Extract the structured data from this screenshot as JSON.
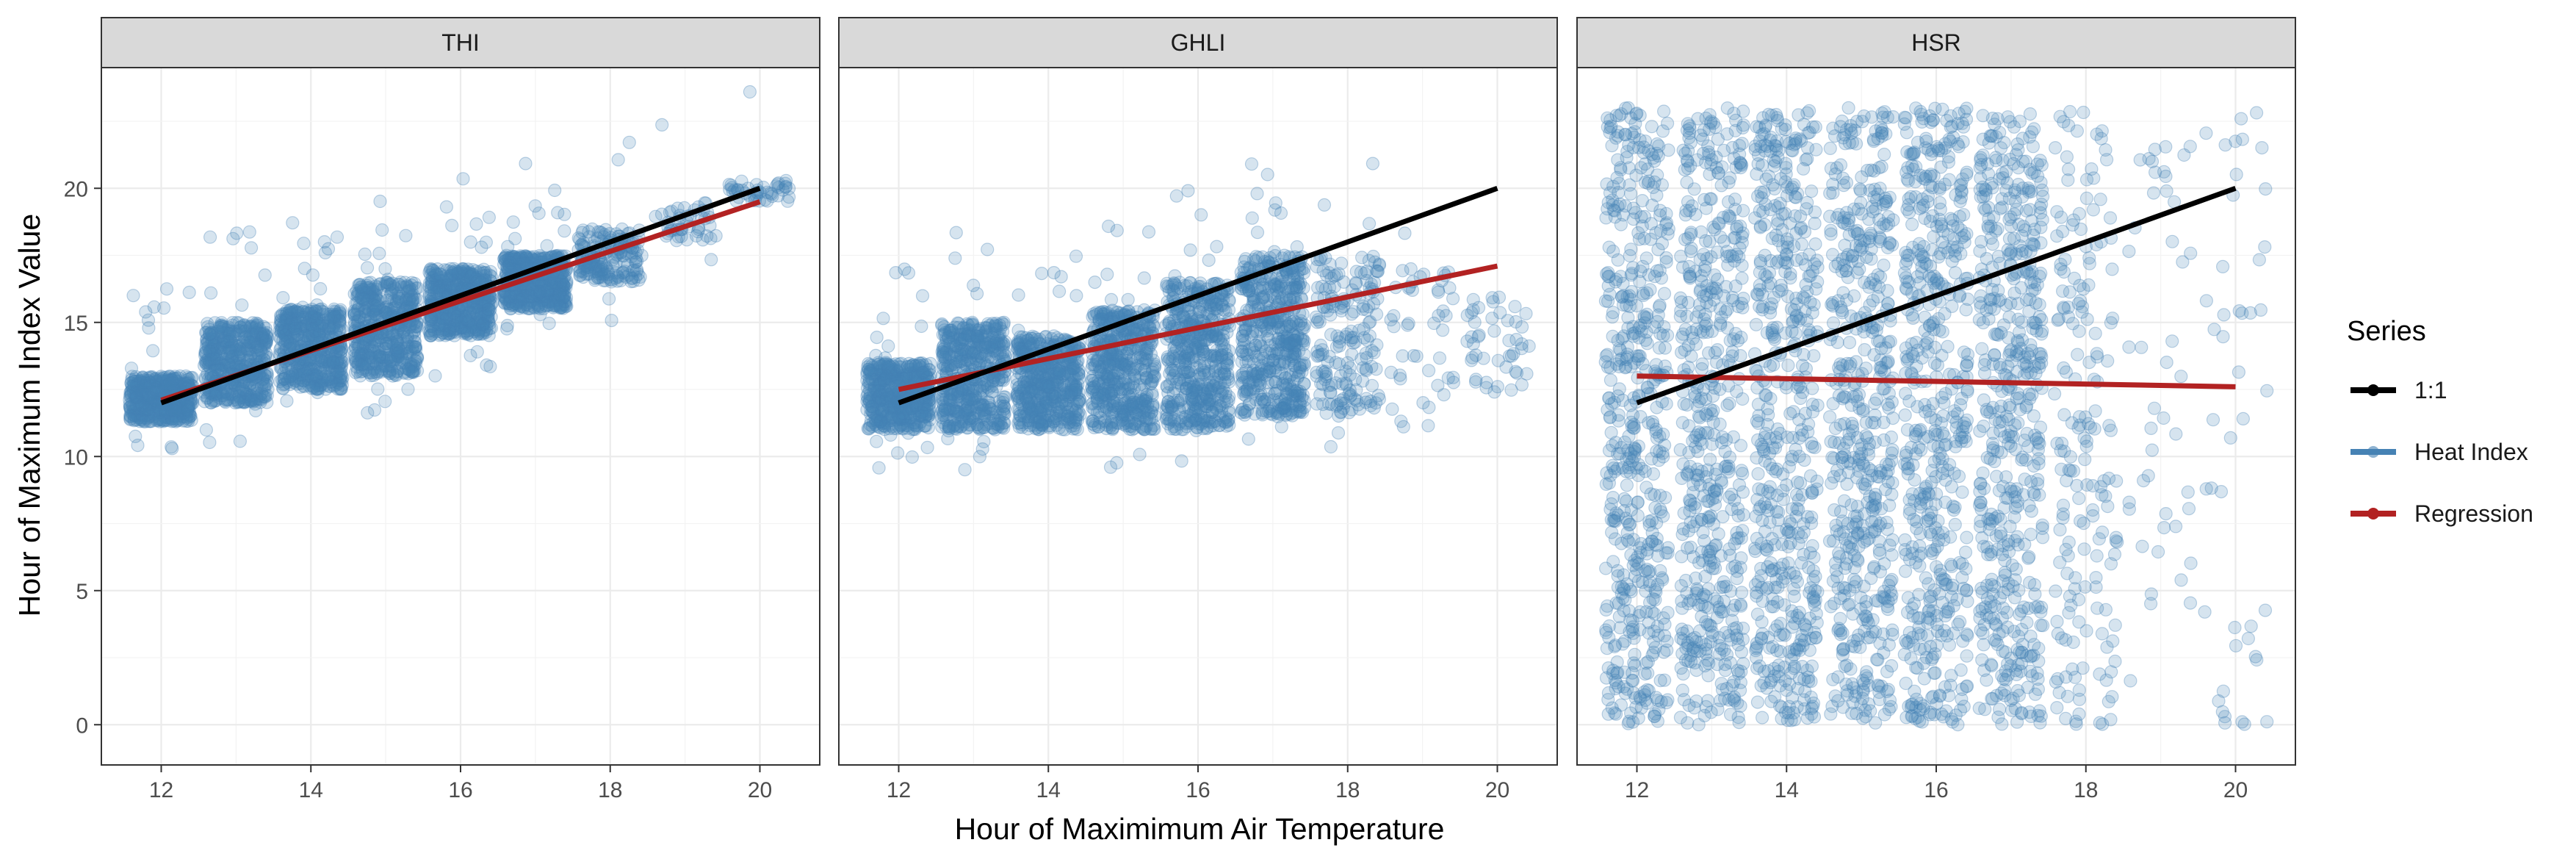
{
  "chart_data": {
    "type": "scatter",
    "facets": [
      "THI",
      "GHLI",
      "HSR"
    ],
    "xlabel": "Hour of Maximimum Air Temperature",
    "ylabel": "Hour of Maximum Index Value",
    "x_ticks": [
      12,
      14,
      16,
      18,
      20
    ],
    "y_ticks": [
      0,
      5,
      10,
      15,
      20
    ],
    "xlim": [
      11.2,
      20.8
    ],
    "ylim": [
      -1.5,
      24.5
    ],
    "legend": {
      "title": "Series",
      "placement": "right",
      "entries": [
        {
          "name": "1:1",
          "color": "#000000"
        },
        {
          "name": "Heat Index",
          "color": "#4682B4"
        },
        {
          "name": "Regression",
          "color": "#B22222"
        }
      ]
    },
    "one_to_one": {
      "x": [
        12,
        20
      ],
      "y": [
        12,
        20
      ]
    },
    "regression": {
      "THI": {
        "x": [
          12,
          20
        ],
        "y": [
          12.1,
          19.5
        ]
      },
      "GHLI": {
        "x": [
          12,
          20
        ],
        "y": [
          12.5,
          17.1
        ]
      },
      "HSR": {
        "x": [
          12,
          20
        ],
        "y": [
          13.0,
          12.6
        ]
      }
    },
    "scatter_summary": {
      "THI": [
        {
          "hour": 12,
          "main_range": [
            11.3,
            13.0
          ],
          "count": "high"
        },
        {
          "hour": 13,
          "main_range": [
            12.0,
            15.0
          ],
          "count": "high"
        },
        {
          "hour": 14,
          "main_range": [
            12.5,
            15.5
          ],
          "count": "high"
        },
        {
          "hour": 15,
          "main_range": [
            13.0,
            16.5
          ],
          "count": "high"
        },
        {
          "hour": 16,
          "main_range": [
            14.5,
            17.0
          ],
          "count": "high"
        },
        {
          "hour": 17,
          "main_range": [
            15.5,
            17.5
          ],
          "count": "high"
        },
        {
          "hour": 18,
          "main_range": [
            16.5,
            18.5
          ],
          "count": "medium"
        },
        {
          "hour": 19,
          "main_range": [
            18.0,
            19.5
          ],
          "count": "low"
        },
        {
          "hour": 20,
          "main_range": [
            19.5,
            20.3
          ],
          "count": "low"
        }
      ],
      "GHLI": [
        {
          "hour": 12,
          "main_range": [
            11.0,
            13.5
          ],
          "count": "high"
        },
        {
          "hour": 13,
          "main_range": [
            11.0,
            15.0
          ],
          "count": "high"
        },
        {
          "hour": 14,
          "main_range": [
            11.0,
            14.5
          ],
          "count": "high"
        },
        {
          "hour": 15,
          "main_range": [
            11.0,
            15.5
          ],
          "count": "high"
        },
        {
          "hour": 16,
          "main_range": [
            11.0,
            16.5
          ],
          "count": "high"
        },
        {
          "hour": 17,
          "main_range": [
            11.5,
            17.5
          ],
          "count": "high"
        },
        {
          "hour": 18,
          "main_range": [
            11.5,
            17.5
          ],
          "count": "medium"
        },
        {
          "hour": 19,
          "main_range": [
            11.0,
            17.0
          ],
          "count": "low"
        },
        {
          "hour": 20,
          "main_range": [
            12.0,
            16.0
          ],
          "count": "low"
        }
      ],
      "HSR": [
        {
          "hour": 12,
          "main_range": [
            0,
            23
          ],
          "count": "high"
        },
        {
          "hour": 13,
          "main_range": [
            0,
            23
          ],
          "count": "high"
        },
        {
          "hour": 14,
          "main_range": [
            0,
            23
          ],
          "count": "high"
        },
        {
          "hour": 15,
          "main_range": [
            0,
            23
          ],
          "count": "high"
        },
        {
          "hour": 16,
          "main_range": [
            0,
            23
          ],
          "count": "high"
        },
        {
          "hour": 17,
          "main_range": [
            0,
            23
          ],
          "count": "high"
        },
        {
          "hour": 18,
          "main_range": [
            0,
            23
          ],
          "count": "medium"
        },
        {
          "hour": 19,
          "main_range": [
            0,
            23
          ],
          "count": "low"
        },
        {
          "hour": 20,
          "main_range": [
            0,
            23
          ],
          "count": "low"
        }
      ]
    }
  }
}
